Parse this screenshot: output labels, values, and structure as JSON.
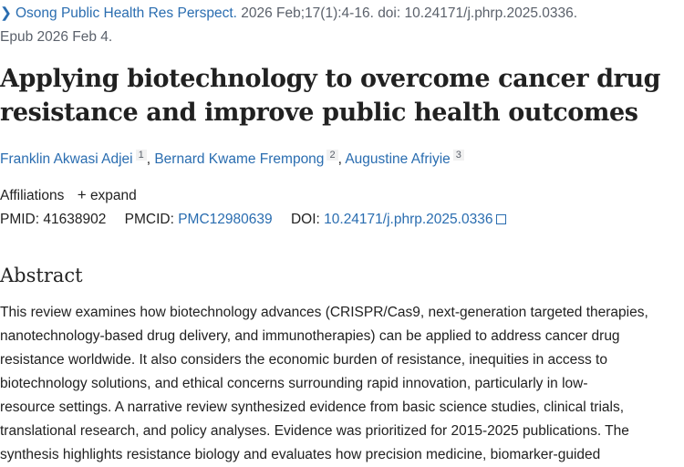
{
  "citation": {
    "journal": "Osong Public Health Res Perspect.",
    "details": " 2026 Feb;17(1):4-16. doi: 10.24171/j.phrp.2025.0336.",
    "epub": "Epub 2026 Feb 4."
  },
  "title_lines": [
    "Applying biotechnology to overcome cancer drug",
    "resistance and improve public health outcomes"
  ],
  "authors": [
    {
      "name": "Franklin Akwasi Adjei",
      "aff": "1"
    },
    {
      "name": "Bernard Kwame Frempong",
      "aff": "2"
    },
    {
      "name": "Augustine Afriyie",
      "aff": "3"
    }
  ],
  "affiliations": {
    "label": "Affiliations",
    "expand": "expand"
  },
  "ids": {
    "pmid_label": "PMID:",
    "pmid": "41638902",
    "pmcid_label": "PMCID:",
    "pmcid": "PMC12980639",
    "doi_label": "DOI:",
    "doi": "10.24171/j.phrp.2025.0336"
  },
  "abstract": {
    "heading": "Abstract",
    "lines": [
      "This review examines how biotechnology advances (CRISPR/Cas9, next-generation targeted therapies,",
      "nanotechnology-based drug delivery, and immunotherapies) can be applied to address cancer drug",
      "resistance worldwide. It also considers the economic burden of resistance, inequities in access to",
      "biotechnology solutions, and ethical concerns surrounding rapid innovation, particularly in low-",
      "resource settings. A narrative review synthesized evidence from basic science studies, clinical trials,",
      "translational research, and policy analyses. Evidence was prioritized for 2015-2025 publications. The",
      "synthesis highlights resistance biology and evaluates how precision medicine, biomarker-guided"
    ]
  },
  "colors": {
    "link": "#2a6db0",
    "muted": "#5b616b",
    "text": "#212121"
  }
}
